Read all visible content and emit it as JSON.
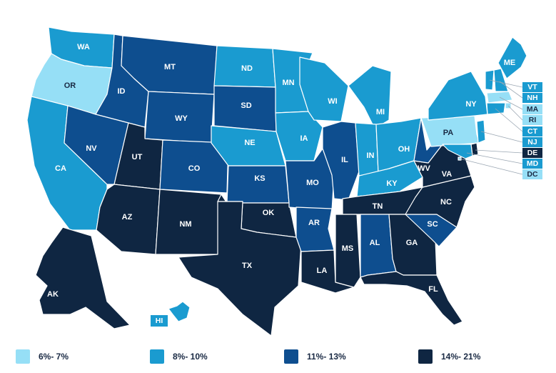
{
  "colors": {
    "bin1": "#96dff6",
    "bin2": "#1a9bd0",
    "bin3": "#0e4e8f",
    "bin4": "#0f2642"
  },
  "states": [
    {
      "abbr": "WA",
      "bin": 2
    },
    {
      "abbr": "OR",
      "bin": 1
    },
    {
      "abbr": "CA",
      "bin": 2
    },
    {
      "abbr": "ID",
      "bin": 3
    },
    {
      "abbr": "NV",
      "bin": 3
    },
    {
      "abbr": "MT",
      "bin": 3
    },
    {
      "abbr": "WY",
      "bin": 3
    },
    {
      "abbr": "UT",
      "bin": 4
    },
    {
      "abbr": "AZ",
      "bin": 4
    },
    {
      "abbr": "CO",
      "bin": 3
    },
    {
      "abbr": "NM",
      "bin": 4
    },
    {
      "abbr": "ND",
      "bin": 2
    },
    {
      "abbr": "SD",
      "bin": 3
    },
    {
      "abbr": "NE",
      "bin": 2
    },
    {
      "abbr": "KS",
      "bin": 3
    },
    {
      "abbr": "OK",
      "bin": 4
    },
    {
      "abbr": "TX",
      "bin": 4
    },
    {
      "abbr": "MN",
      "bin": 2
    },
    {
      "abbr": "IA",
      "bin": 2
    },
    {
      "abbr": "MO",
      "bin": 3
    },
    {
      "abbr": "AR",
      "bin": 3
    },
    {
      "abbr": "LA",
      "bin": 4
    },
    {
      "abbr": "WI",
      "bin": 2
    },
    {
      "abbr": "IL",
      "bin": 3
    },
    {
      "abbr": "MI",
      "bin": 2
    },
    {
      "abbr": "IN",
      "bin": 2
    },
    {
      "abbr": "OH",
      "bin": 2
    },
    {
      "abbr": "KY",
      "bin": 2
    },
    {
      "abbr": "TN",
      "bin": 4
    },
    {
      "abbr": "MS",
      "bin": 4
    },
    {
      "abbr": "AL",
      "bin": 3
    },
    {
      "abbr": "GA",
      "bin": 4
    },
    {
      "abbr": "FL",
      "bin": 4
    },
    {
      "abbr": "SC",
      "bin": 3
    },
    {
      "abbr": "NC",
      "bin": 4
    },
    {
      "abbr": "VA",
      "bin": 4
    },
    {
      "abbr": "WV",
      "bin": 3
    },
    {
      "abbr": "PA",
      "bin": 1
    },
    {
      "abbr": "NY",
      "bin": 2
    },
    {
      "abbr": "ME",
      "bin": 2
    },
    {
      "abbr": "AK",
      "bin": 4
    },
    {
      "abbr": "HI",
      "bin": 2
    },
    {
      "abbr": "VT",
      "bin": 2
    },
    {
      "abbr": "NH",
      "bin": 2
    },
    {
      "abbr": "MA",
      "bin": 1
    },
    {
      "abbr": "RI",
      "bin": 1
    },
    {
      "abbr": "CT",
      "bin": 2
    },
    {
      "abbr": "NJ",
      "bin": 2
    },
    {
      "abbr": "DE",
      "bin": 4
    },
    {
      "abbr": "MD",
      "bin": 2
    },
    {
      "abbr": "DC",
      "bin": 1
    }
  ],
  "legend": [
    {
      "label": "6%- 7%",
      "bin": 1
    },
    {
      "label": "8%- 10%",
      "bin": 2
    },
    {
      "label": "11%- 13%",
      "bin": 3
    },
    {
      "label": "14%- 21%",
      "bin": 4
    }
  ]
}
